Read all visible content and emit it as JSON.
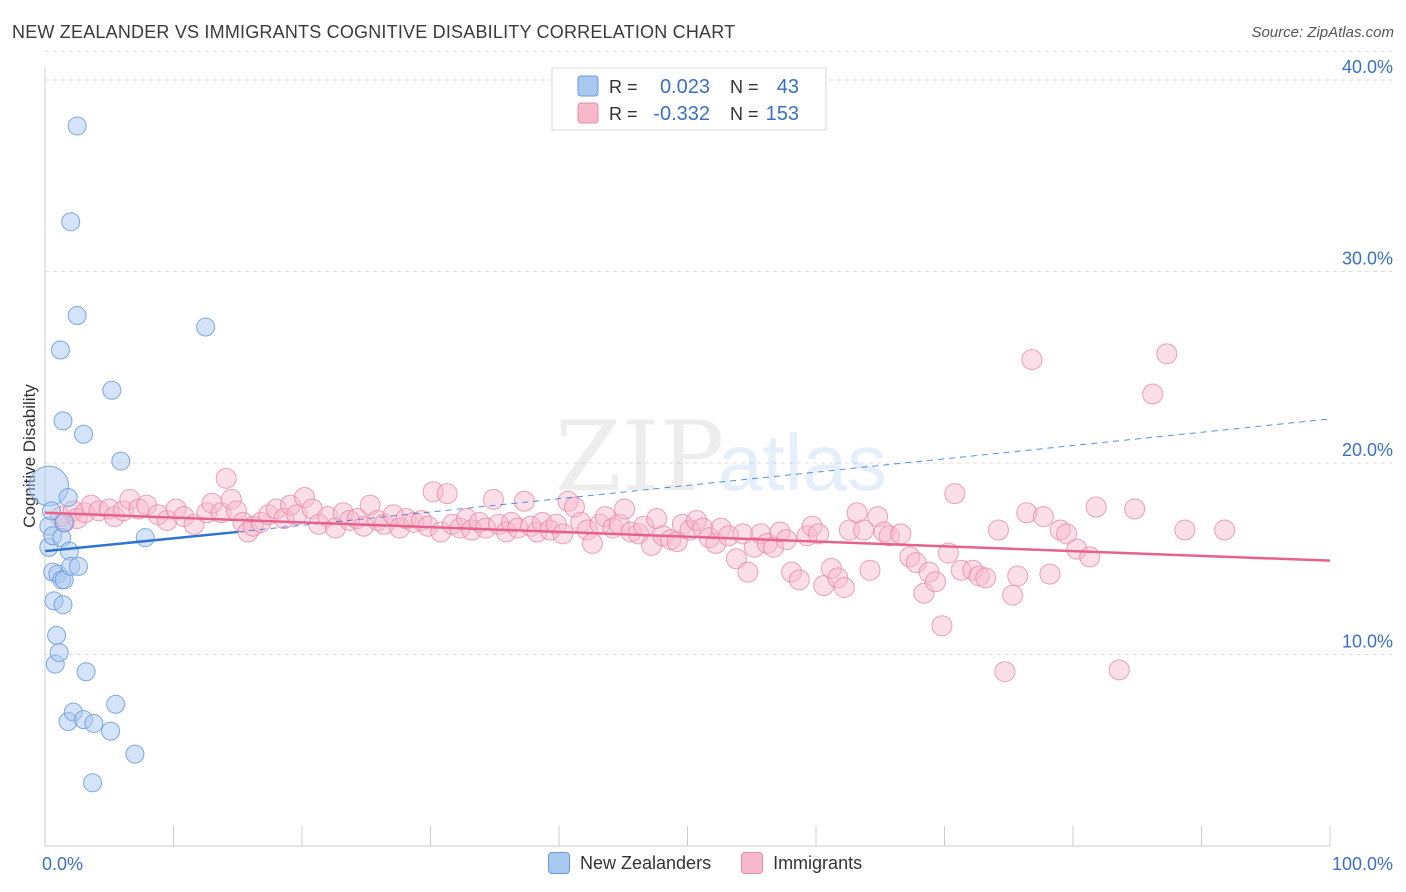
{
  "title": "NEW ZEALANDER VS IMMIGRANTS COGNITIVE DISABILITY CORRELATION CHART",
  "source": "Source: ZipAtlas.com",
  "watermark": {
    "zip": "ZIP",
    "atlas": "atlas"
  },
  "colors": {
    "blue_fill": "#a9c8ef",
    "blue_stroke": "#6a9ad8",
    "blue_line": "#2f74d0",
    "pink_fill": "#f6b9cc",
    "pink_stroke": "#e88aa6",
    "pink_line": "#e4628d",
    "axis_label": "#3a6fc4",
    "grid": "#dddddd"
  },
  "legend_top": {
    "rows": [
      {
        "series": "blue",
        "r_label": "R =",
        "r_value": "0.023",
        "n_label": "N =",
        "n_value": "43"
      },
      {
        "series": "pink",
        "r_label": "R =",
        "r_value": "-0.332",
        "n_label": "N =",
        "n_value": "153"
      }
    ]
  },
  "legend_bottom": [
    {
      "series": "blue",
      "label": "New Zealanders"
    },
    {
      "series": "pink",
      "label": "Immigrants"
    }
  ],
  "chart_data": {
    "type": "scatter",
    "title": "NEW ZEALANDER VS IMMIGRANTS COGNITIVE DISABILITY CORRELATION CHART",
    "xlabel": "",
    "ylabel": "Cognitive Disability",
    "xlim": [
      0,
      100
    ],
    "ylim": [
      0,
      41.5
    ],
    "x_tick_labels": [
      "0.0%",
      "100.0%"
    ],
    "y_ticks": [
      10,
      20,
      30,
      40
    ],
    "y_tick_labels": [
      "10.0%",
      "20.0%",
      "30.0%",
      "40.0%"
    ],
    "grid": "horizontal dashed",
    "legend": "top-center",
    "series": [
      {
        "name": "New Zealanders",
        "color": "blue",
        "trend": {
          "x": [
            0,
            15
          ],
          "y": [
            15.4,
            16.4
          ],
          "dashed_extension": {
            "x": [
              15,
              100
            ],
            "y": [
              16.4,
              22.3
            ]
          }
        },
        "points": [
          [
            0.3,
            18.8,
            2.2
          ],
          [
            0.3,
            16.7,
            1
          ],
          [
            0.3,
            15.6,
            1
          ],
          [
            0.5,
            17.5,
            1
          ],
          [
            0.6,
            16.2,
            1
          ],
          [
            0.6,
            14.3,
            1
          ],
          [
            0.7,
            12.8,
            1
          ],
          [
            0.8,
            9.5,
            1
          ],
          [
            0.9,
            11.0,
            1
          ],
          [
            1.0,
            14.2,
            1
          ],
          [
            1.1,
            10.1,
            1
          ],
          [
            1.2,
            25.9,
            1
          ],
          [
            1.3,
            16.1,
            1
          ],
          [
            1.3,
            13.9,
            1
          ],
          [
            1.4,
            22.2,
            1
          ],
          [
            1.4,
            12.6,
            1
          ],
          [
            1.5,
            16.9,
            1
          ],
          [
            1.5,
            13.9,
            1
          ],
          [
            1.8,
            18.2,
            1
          ],
          [
            1.8,
            6.5,
            1
          ],
          [
            1.9,
            15.4,
            1
          ],
          [
            2.0,
            14.6,
            1
          ],
          [
            2.0,
            32.6,
            1
          ],
          [
            2.2,
            7.0,
            1
          ],
          [
            2.5,
            37.6,
            1
          ],
          [
            2.5,
            27.7,
            1
          ],
          [
            2.6,
            14.6,
            1
          ],
          [
            3.0,
            21.5,
            1
          ],
          [
            3.0,
            6.6,
            1
          ],
          [
            3.2,
            9.1,
            1
          ],
          [
            3.7,
            3.3,
            1
          ],
          [
            3.8,
            6.4,
            1
          ],
          [
            5.1,
            6.0,
            1
          ],
          [
            5.2,
            23.8,
            1
          ],
          [
            5.5,
            7.4,
            1
          ],
          [
            5.9,
            20.1,
            1
          ],
          [
            7.0,
            4.8,
            1
          ],
          [
            7.8,
            16.1,
            1
          ],
          [
            12.5,
            27.1,
            1
          ]
        ]
      },
      {
        "name": "Immigrants",
        "color": "pink",
        "trend": {
          "x": [
            0,
            100
          ],
          "y": [
            17.4,
            14.9
          ]
        },
        "points": [
          [
            1.2,
            17.2
          ],
          [
            1.5,
            16.9
          ],
          [
            2.2,
            17.5
          ],
          [
            2.5,
            17.1
          ],
          [
            3.1,
            17.4
          ],
          [
            3.6,
            17.8
          ],
          [
            4.2,
            17.5
          ],
          [
            5.0,
            17.6
          ],
          [
            5.4,
            17.2
          ],
          [
            6.1,
            17.5
          ],
          [
            6.6,
            18.1
          ],
          [
            7.3,
            17.6
          ],
          [
            7.9,
            17.8
          ],
          [
            8.8,
            17.3
          ],
          [
            9.5,
            17.0
          ],
          [
            10.2,
            17.6
          ],
          [
            10.8,
            17.2
          ],
          [
            11.6,
            16.8
          ],
          [
            12.6,
            17.4
          ],
          [
            13.0,
            17.9
          ],
          [
            13.7,
            17.4
          ],
          [
            14.1,
            19.2
          ],
          [
            14.5,
            18.1
          ],
          [
            14.9,
            17.5
          ],
          [
            15.4,
            16.9
          ],
          [
            15.8,
            16.4
          ],
          [
            16.2,
            16.7
          ],
          [
            16.8,
            16.9
          ],
          [
            17.4,
            17.3
          ],
          [
            18.0,
            17.6
          ],
          [
            18.6,
            17.1
          ],
          [
            19.1,
            17.8
          ],
          [
            19.6,
            17.3
          ],
          [
            20.2,
            18.2
          ],
          [
            20.8,
            17.6
          ],
          [
            21.3,
            16.8
          ],
          [
            22.0,
            17.2
          ],
          [
            22.6,
            16.6
          ],
          [
            23.2,
            17.4
          ],
          [
            23.7,
            17.0
          ],
          [
            24.3,
            17.1
          ],
          [
            24.8,
            16.7
          ],
          [
            25.3,
            17.8
          ],
          [
            25.9,
            17.0
          ],
          [
            26.4,
            16.8
          ],
          [
            27.1,
            17.3
          ],
          [
            27.6,
            16.6
          ],
          [
            28.1,
            17.1
          ],
          [
            28.7,
            16.9
          ],
          [
            29.3,
            17.0
          ],
          [
            29.8,
            16.7
          ],
          [
            30.2,
            18.5
          ],
          [
            30.8,
            16.4
          ],
          [
            31.3,
            18.4
          ],
          [
            31.7,
            16.8
          ],
          [
            32.3,
            16.6
          ],
          [
            32.8,
            17.1
          ],
          [
            33.2,
            16.5
          ],
          [
            33.8,
            16.9
          ],
          [
            34.3,
            16.6
          ],
          [
            34.9,
            18.1
          ],
          [
            35.3,
            16.8
          ],
          [
            35.9,
            16.4
          ],
          [
            36.3,
            16.9
          ],
          [
            36.8,
            16.6
          ],
          [
            37.3,
            18.0
          ],
          [
            37.8,
            16.7
          ],
          [
            38.3,
            16.4
          ],
          [
            38.7,
            16.9
          ],
          [
            39.3,
            16.5
          ],
          [
            39.8,
            16.8
          ],
          [
            40.3,
            16.3
          ],
          [
            40.7,
            18.0
          ],
          [
            41.2,
            17.7
          ],
          [
            41.7,
            16.9
          ],
          [
            42.2,
            16.5
          ],
          [
            42.6,
            15.8
          ],
          [
            43.2,
            16.8
          ],
          [
            43.6,
            17.2
          ],
          [
            44.2,
            16.6
          ],
          [
            44.7,
            16.8
          ],
          [
            45.1,
            17.6
          ],
          [
            45.6,
            16.4
          ],
          [
            46.2,
            16.3
          ],
          [
            46.6,
            16.7
          ],
          [
            47.2,
            15.7
          ],
          [
            47.6,
            17.1
          ],
          [
            48.1,
            16.2
          ],
          [
            48.7,
            16.0
          ],
          [
            49.2,
            15.9
          ],
          [
            49.6,
            16.8
          ],
          [
            50.2,
            16.5
          ],
          [
            50.7,
            17.0
          ],
          [
            51.2,
            16.6
          ],
          [
            51.7,
            16.1
          ],
          [
            52.2,
            15.8
          ],
          [
            52.6,
            16.6
          ],
          [
            53.2,
            16.2
          ],
          [
            53.8,
            15.0
          ],
          [
            54.3,
            16.3
          ],
          [
            54.7,
            14.3
          ],
          [
            55.2,
            15.6
          ],
          [
            55.7,
            16.3
          ],
          [
            56.2,
            15.8
          ],
          [
            56.7,
            15.6
          ],
          [
            57.2,
            16.4
          ],
          [
            57.7,
            16.0
          ],
          [
            58.1,
            14.3
          ],
          [
            58.7,
            13.9
          ],
          [
            59.3,
            16.2
          ],
          [
            59.7,
            16.7
          ],
          [
            60.2,
            16.3
          ],
          [
            60.6,
            13.6
          ],
          [
            61.2,
            14.5
          ],
          [
            61.7,
            14.0
          ],
          [
            62.2,
            13.5
          ],
          [
            62.6,
            16.5
          ],
          [
            63.2,
            17.4
          ],
          [
            63.7,
            16.5
          ],
          [
            64.2,
            14.4
          ],
          [
            64.8,
            17.2
          ],
          [
            65.3,
            16.4
          ],
          [
            65.7,
            16.2
          ],
          [
            66.6,
            16.3
          ],
          [
            67.3,
            15.1
          ],
          [
            67.8,
            14.8
          ],
          [
            68.4,
            13.2
          ],
          [
            68.8,
            14.3
          ],
          [
            69.3,
            13.8
          ],
          [
            69.8,
            11.5
          ],
          [
            70.3,
            15.3
          ],
          [
            70.8,
            18.4
          ],
          [
            71.3,
            14.4
          ],
          [
            72.2,
            14.4
          ],
          [
            72.7,
            14.1
          ],
          [
            73.2,
            14.0
          ],
          [
            74.2,
            16.5
          ],
          [
            74.7,
            9.1
          ],
          [
            75.3,
            13.1
          ],
          [
            75.7,
            14.1
          ],
          [
            76.4,
            17.4
          ],
          [
            76.8,
            25.4
          ],
          [
            77.7,
            17.2
          ],
          [
            78.2,
            14.2
          ],
          [
            79.0,
            16.5
          ],
          [
            79.5,
            16.3
          ],
          [
            80.3,
            15.5
          ],
          [
            81.3,
            15.1
          ],
          [
            81.8,
            17.7
          ],
          [
            83.6,
            9.2
          ],
          [
            84.8,
            17.6
          ],
          [
            86.2,
            23.6
          ],
          [
            87.3,
            25.7
          ],
          [
            88.7,
            16.5
          ],
          [
            91.8,
            16.5
          ]
        ]
      }
    ]
  }
}
